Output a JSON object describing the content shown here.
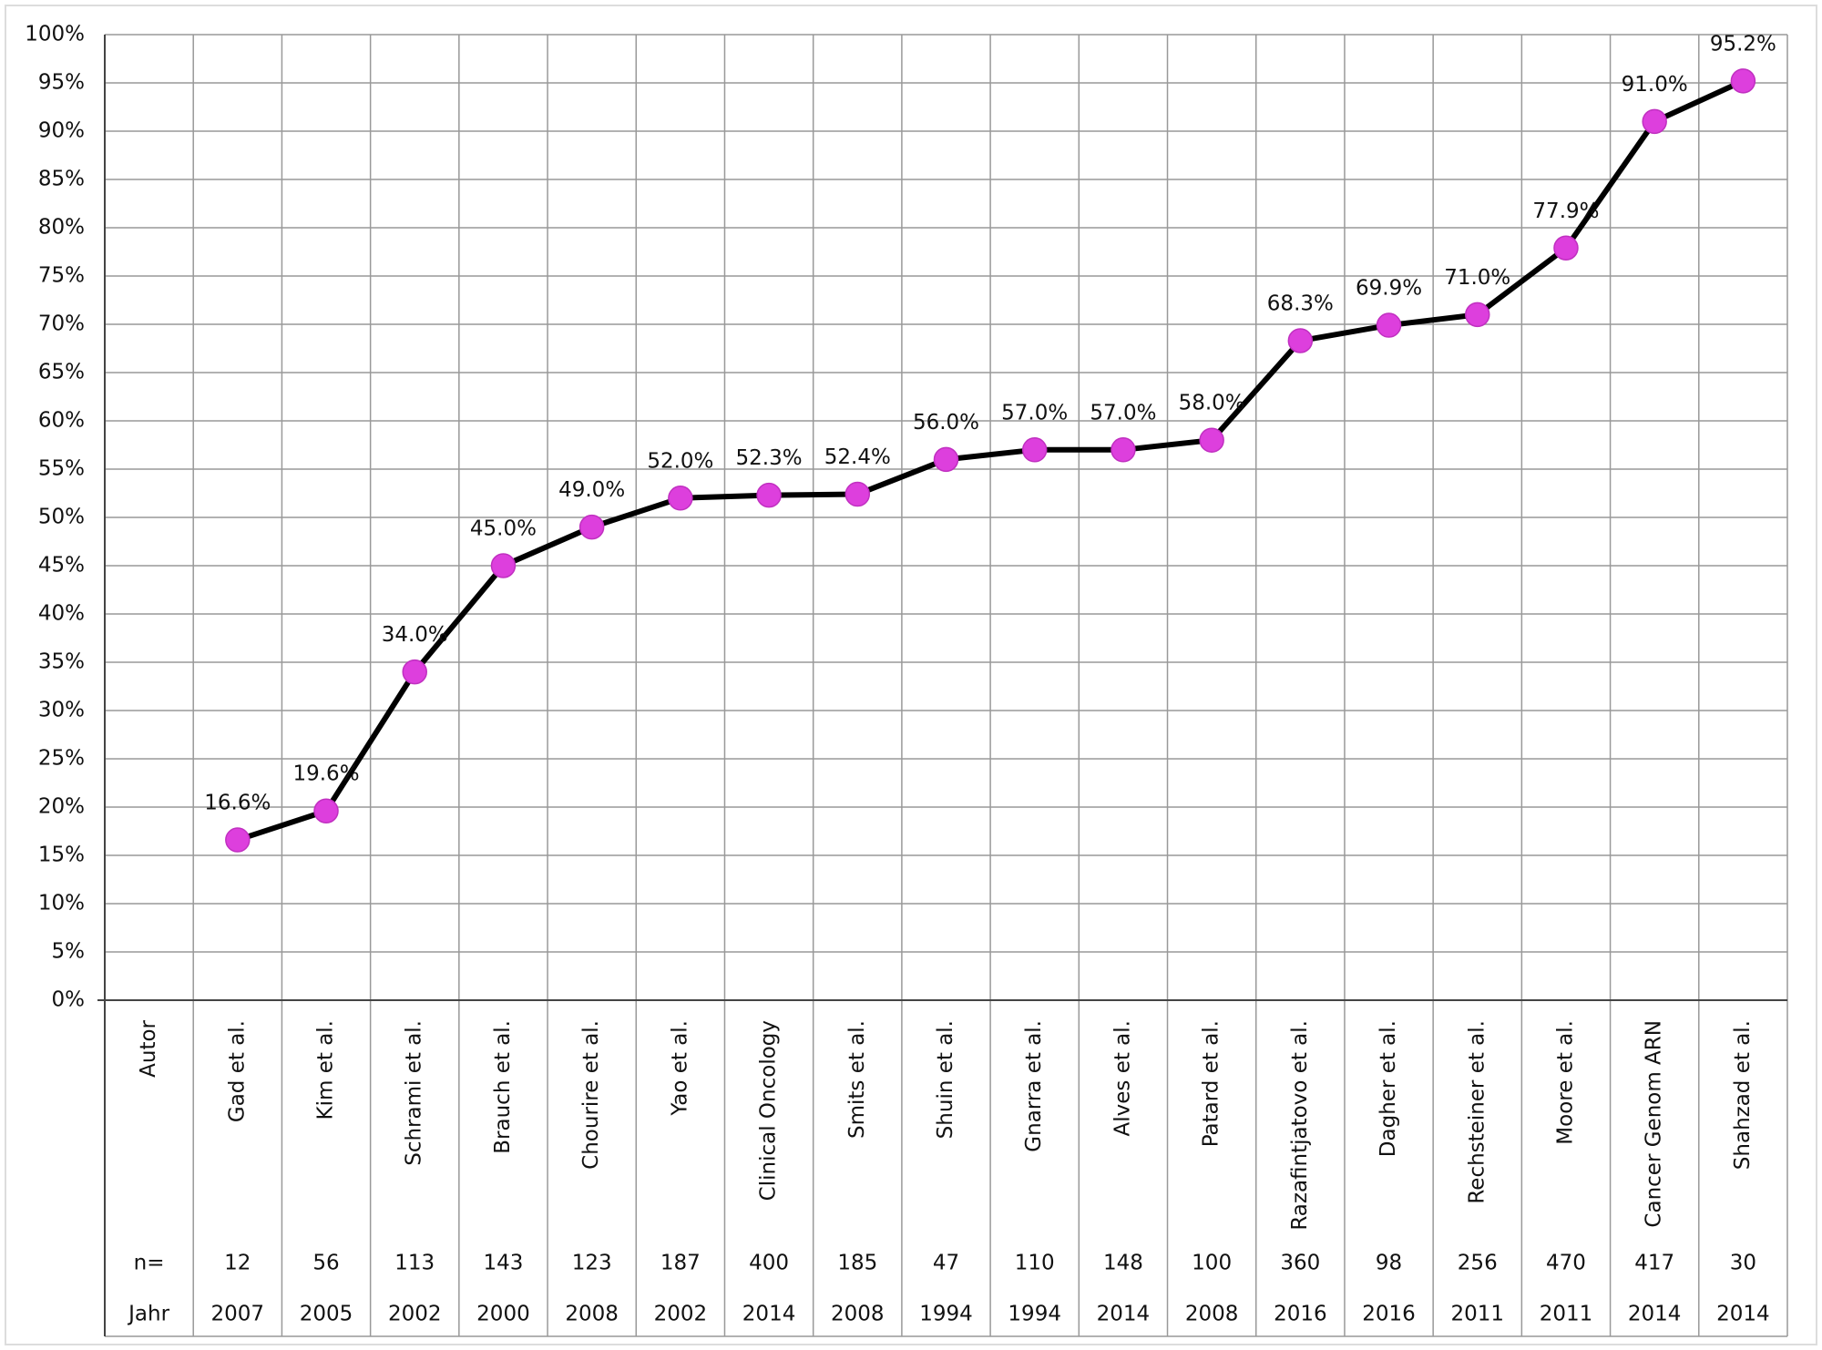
{
  "chart_data": {
    "type": "line",
    "categories": [
      "Gad et al.",
      "Kim et al.",
      "Schrami et al.",
      "Brauch et al.",
      "Chourire et al.",
      "Yao et al.",
      "Clinical Oncology",
      "Smits et al.",
      "Shuin et al.",
      "Gnarra et al.",
      "Alves et al.",
      "Patard et al.",
      "Razafintjatovo et al.",
      "Dagher et al.",
      "Rechsteiner et al.",
      "Moore et al.",
      "Cancer Genom ARN",
      "Shahzad et al."
    ],
    "series": [
      {
        "color": "#dd3fdd",
        "values": [
          16.6,
          19.6,
          34.0,
          45.0,
          49.0,
          52.0,
          52.3,
          52.4,
          56.0,
          57.0,
          57.0,
          58.0,
          68.3,
          69.9,
          71.0,
          77.9,
          91.0,
          95.2
        ],
        "value_labels": [
          "16.6%",
          "19.6%",
          "34.0%",
          "45.0%",
          "49.0%",
          "52.0%",
          "52.3%",
          "52.4%",
          "56.0%",
          "57.0%",
          "57.0%",
          "58.0%",
          "68.3%",
          "69.9%",
          "71.0%",
          "77.9%",
          "91.0%",
          "95.2%"
        ]
      }
    ],
    "row_labels": [
      "Autor",
      "n=",
      "Jahr"
    ],
    "n": [
      12,
      56,
      113,
      143,
      123,
      187,
      400,
      185,
      47,
      110,
      148,
      100,
      360,
      98,
      256,
      470,
      417,
      30
    ],
    "years": [
      2007,
      2005,
      2002,
      2000,
      2008,
      2002,
      2014,
      2008,
      1994,
      1994,
      2014,
      2008,
      2016,
      2016,
      2011,
      2011,
      2014,
      2014
    ],
    "ylim": [
      0,
      100
    ],
    "yticks": [
      {
        "value": 0,
        "label": "0%"
      },
      {
        "value": 5,
        "label": "5%"
      },
      {
        "value": 10,
        "label": "10%"
      },
      {
        "value": 15,
        "label": "15%"
      },
      {
        "value": 20,
        "label": "20%"
      },
      {
        "value": 25,
        "label": "25%"
      },
      {
        "value": 30,
        "label": "30%"
      },
      {
        "value": 35,
        "label": "35%"
      },
      {
        "value": 40,
        "label": "40%"
      },
      {
        "value": 45,
        "label": "45%"
      },
      {
        "value": 50,
        "label": "50%"
      },
      {
        "value": 55,
        "label": "55%"
      },
      {
        "value": 60,
        "label": "60%"
      },
      {
        "value": 65,
        "label": "65%"
      },
      {
        "value": 70,
        "label": "70%"
      },
      {
        "value": 75,
        "label": "75%"
      },
      {
        "value": 80,
        "label": "80%"
      },
      {
        "value": 85,
        "label": "85%"
      },
      {
        "value": 90,
        "label": "90%"
      },
      {
        "value": 95,
        "label": "95%"
      },
      {
        "value": 100,
        "label": "100%"
      }
    ],
    "grid": true
  }
}
